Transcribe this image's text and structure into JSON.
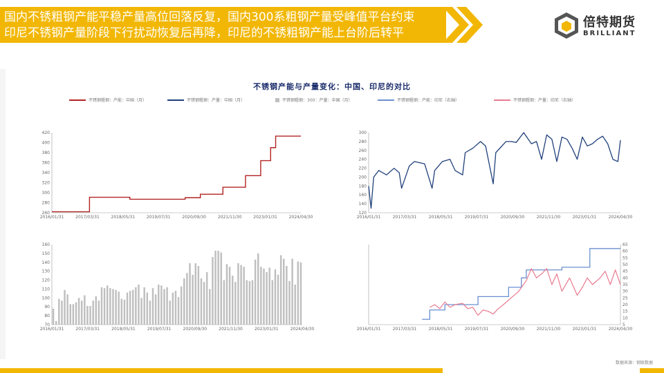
{
  "header": {
    "line1": "国内不锈粗钢产能平稳产量高位回落反复，国内300系粗钢产量受峰值平台约束",
    "line2": "印尼不锈钢产量阶段下行扰动恢复后再降，印尼的不锈粗钢产能上台阶后转平"
  },
  "logo": {
    "cn": "倍特期货",
    "en": "BRILLIANT"
  },
  "colors": {
    "accent": "#f2b705",
    "china_capacity": "#b22222",
    "china_output": "#1f3f7a",
    "china_300": "#bfbfbf",
    "indo_capacity": "#6a8fd0",
    "indo_output": "#e87a90"
  },
  "source": "数据来源：钢联数据",
  "chart_data": [
    {
      "type": "line",
      "title": "不锈钢产能与产量变化：中国、印尼的对比",
      "legend": [
        "不锈钢粗钢：产能：中国（月）",
        "不锈钢粗钢：产量：中国（月）",
        "不锈钢粗钢：300：产量：中国（月）",
        "不锈钢粗钢：产能：印尼（右轴）",
        "不锈钢粗钢：产量：印尼（右轴）"
      ]
    },
    {
      "type": "line",
      "panel": "top-left",
      "series": [
        {
          "name": "不锈钢粗钢：产能：中国（月）",
          "x": [
            "2016/01/31",
            "2017/01/31",
            "2017/04/30",
            "2018/06/30",
            "2018/08/31",
            "2020/06/30",
            "2020/12/31",
            "2021/09/30",
            "2022/06/30",
            "2022/12/31",
            "2023/04/30",
            "2023/06/30",
            "2024/04/30"
          ],
          "values": [
            262,
            262,
            291,
            291,
            287,
            290,
            297,
            311,
            334,
            364,
            390,
            413,
            413
          ]
        }
      ],
      "x_ticks": [
        "2016/01/31",
        "2017/03/31",
        "2018/05/31",
        "2019/07/31",
        "2020/09/30",
        "2021/11/30",
        "2023/01/31",
        "2024/04/30"
      ],
      "y_ticks": [
        "260",
        "280",
        "300",
        "320",
        "340",
        "360",
        "380",
        "400",
        "420"
      ],
      "ylim": [
        260,
        420
      ]
    },
    {
      "type": "line",
      "panel": "top-right",
      "series": [
        {
          "name": "不锈钢粗钢：产量：中国（月）",
          "x": [
            "2016/01/31",
            "2016/02/29",
            "2016/03/31",
            "2016/05/31",
            "2016/08/31",
            "2016/11/30",
            "2017/01/31",
            "2017/02/28",
            "2017/05/31",
            "2017/07/31",
            "2017/11/30",
            "2018/02/28",
            "2018/03/31",
            "2018/06/30",
            "2018/09/30",
            "2018/11/30",
            "2019/02/28",
            "2019/03/31",
            "2019/06/30",
            "2019/09/30",
            "2019/11/30",
            "2020/02/29",
            "2020/03/31",
            "2020/07/31",
            "2020/09/30",
            "2020/11/30",
            "2021/02/28",
            "2021/05/31",
            "2021/07/31",
            "2021/09/30",
            "2021/11/30",
            "2022/01/31",
            "2022/03/31",
            "2022/05/31",
            "2022/07/31",
            "2022/09/30",
            "2022/11/30",
            "2023/01/31",
            "2023/03/31",
            "2023/05/31",
            "2023/07/31",
            "2023/09/30",
            "2023/11/30",
            "2024/01/31",
            "2024/03/31",
            "2024/04/30"
          ],
          "values": [
            180,
            130,
            200,
            215,
            205,
            220,
            210,
            175,
            225,
            235,
            230,
            175,
            215,
            235,
            240,
            215,
            205,
            255,
            265,
            280,
            270,
            185,
            255,
            280,
            280,
            278,
            300,
            275,
            280,
            240,
            295,
            285,
            235,
            290,
            285,
            265,
            240,
            290,
            270,
            275,
            285,
            292,
            275,
            240,
            235,
            283
          ]
        }
      ],
      "x_ticks": [
        "2016/01/31",
        "2017/03/31",
        "2018/05/31",
        "2019/07/31",
        "2020/09/30",
        "2021/11/30",
        "2023/01/31",
        "2024/04/30"
      ],
      "y_ticks": [
        "120",
        "140",
        "160",
        "180",
        "200",
        "220",
        "240",
        "260",
        "280",
        "300"
      ],
      "ylim": [
        120,
        300
      ]
    },
    {
      "type": "bar",
      "panel": "bottom-left",
      "series": [
        {
          "name": "不锈钢粗钢：300：产量：中国（月）",
          "values": [
            88,
            74,
            99,
            97,
            109,
            104,
            93,
            93,
            95,
            100,
            97,
            103,
            91,
            91,
            97,
            102,
            97,
            112,
            111,
            114,
            111,
            110,
            109,
            107,
            99,
            98,
            106,
            108,
            109,
            112,
            115,
            100,
            112,
            106,
            97,
            111,
            104,
            115,
            114,
            110,
            112,
            97,
            106,
            108,
            101,
            113,
            122,
            128,
            139,
            126,
            139,
            136,
            122,
            118,
            129,
            110,
            146,
            153,
            153,
            151,
            120,
            138,
            135,
            125,
            118,
            139,
            137,
            135,
            120,
            119,
            120,
            143,
            150,
            135,
            133,
            129,
            134,
            120,
            132,
            126,
            148,
            144,
            136,
            119,
            144,
            115,
            141,
            140
          ]
        }
      ],
      "x_ticks": [
        "2016/01/31",
        "2017/03/31",
        "2018/05/31",
        "2019/07/31",
        "2020/09/30",
        "2021/11/30",
        "2023/01/31",
        "2024/04/30"
      ],
      "y_ticks": [
        "70",
        "80",
        "90",
        "100",
        "110",
        "120",
        "130",
        "140",
        "150",
        "160"
      ],
      "ylim": [
        70,
        160
      ]
    },
    {
      "type": "line",
      "panel": "bottom-right",
      "series": [
        {
          "name": "不锈钢粗钢：产能：印尼（右轴）",
          "x": [
            "2017/10/31",
            "2017/12/31",
            "2018/01/31",
            "2018/05/31",
            "2018/07/31",
            "2019/06/30",
            "2019/08/31",
            "2020/06/30",
            "2020/08/31",
            "2020/10/31",
            "2021/01/31",
            "2021/03/31",
            "2022/03/31",
            "2022/05/31",
            "2023/02/28",
            "2023/04/30",
            "2024/04/30"
          ],
          "values": [
            9,
            9,
            16,
            16,
            20,
            20,
            26,
            26,
            33,
            33,
            40,
            46,
            46,
            48,
            48,
            62,
            62
          ]
        },
        {
          "name": "不锈钢粗钢：产量：印尼（右轴）",
          "x": [
            "2018/01/31",
            "2018/03/31",
            "2018/05/31",
            "2018/07/31",
            "2018/09/30",
            "2018/11/30",
            "2019/02/28",
            "2019/04/30",
            "2019/06/30",
            "2019/08/31",
            "2019/10/31",
            "2019/12/31",
            "2020/02/29",
            "2020/04/30",
            "2020/06/30",
            "2020/09/30",
            "2020/12/31",
            "2021/03/31",
            "2021/05/31",
            "2021/07/31",
            "2021/09/30",
            "2021/11/30",
            "2022/01/31",
            "2022/03/31",
            "2022/05/31",
            "2022/08/31",
            "2022/11/30",
            "2023/01/31",
            "2023/03/31",
            "2023/05/31",
            "2023/08/31",
            "2023/10/31",
            "2023/12/31",
            "2024/02/29",
            "2024/04/30"
          ],
          "values": [
            18,
            20,
            17,
            22,
            18,
            20,
            21,
            17,
            18,
            12,
            16,
            15,
            13,
            17,
            20,
            25,
            30,
            38,
            47,
            40,
            43,
            47,
            35,
            43,
            30,
            40,
            27,
            33,
            40,
            35,
            40,
            45,
            35,
            46,
            35
          ]
        }
      ],
      "x_ticks": [
        "2016/01/31",
        "2017/03/31",
        "2018/05/31",
        "2019/07/31",
        "2020/09/30",
        "2021/11/30",
        "2023/01/31",
        "2024/04/30"
      ],
      "y_ticks": [
        "5",
        "10",
        "15",
        "20",
        "25",
        "30",
        "35",
        "40",
        "45",
        "50",
        "55",
        "60",
        "65"
      ],
      "ylim": [
        5,
        65
      ]
    }
  ]
}
